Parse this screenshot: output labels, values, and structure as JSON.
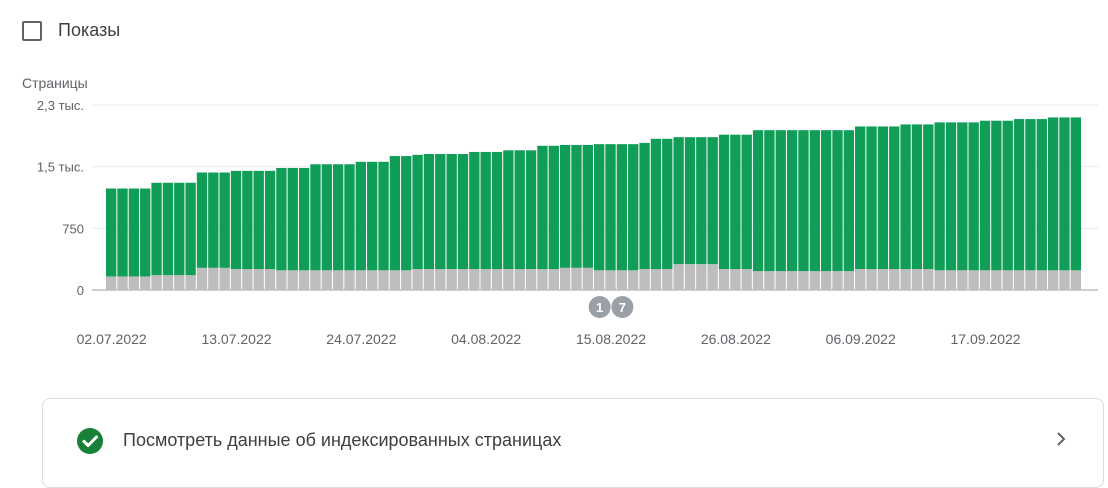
{
  "toggle": {
    "label": "Показы",
    "checked": false
  },
  "card": {
    "label": "Посмотреть данные об индексированных страницах"
  },
  "icons": {
    "check": "check-circle-icon",
    "chevron": "chevron-right-icon"
  },
  "colors": {
    "indexed": "#0f9d58",
    "not_indexed": "#bdbdbd",
    "annotation": "#9aa0a6"
  },
  "chart_data": {
    "type": "bar",
    "stacked": true,
    "ylabel": "Страницы",
    "ylim": [
      0,
      2300
    ],
    "yticks": [
      {
        "value": 0,
        "label": "0"
      },
      {
        "value": 750,
        "label": "750"
      },
      {
        "value": 1500,
        "label": "1,5 тыс."
      },
      {
        "value": 2250,
        "label": "2,3 тыс."
      }
    ],
    "grid": true,
    "x_tick_labels": [
      {
        "index": 0,
        "label": "02.07.2022"
      },
      {
        "index": 11,
        "label": "13.07.2022"
      },
      {
        "index": 22,
        "label": "24.07.2022"
      },
      {
        "index": 33,
        "label": "04.08.2022"
      },
      {
        "index": 44,
        "label": "15.08.2022"
      },
      {
        "index": 55,
        "label": "26.08.2022"
      },
      {
        "index": 66,
        "label": "06.09.2022"
      },
      {
        "index": 77,
        "label": "17.09.2022"
      }
    ],
    "annotations": [
      {
        "index": 43,
        "label": "1"
      },
      {
        "index": 45,
        "label": "7"
      }
    ],
    "series": [
      {
        "color": "#bdbdbd",
        "values": [
          165,
          165,
          165,
          165,
          180,
          180,
          180,
          180,
          270,
          270,
          270,
          255,
          255,
          255,
          255,
          240,
          240,
          240,
          240,
          240,
          240,
          240,
          240,
          240,
          240,
          240,
          240,
          255,
          255,
          255,
          255,
          255,
          255,
          255,
          255,
          255,
          255,
          255,
          255,
          255,
          270,
          270,
          270,
          240,
          240,
          240,
          240,
          255,
          255,
          255,
          315,
          315,
          315,
          315,
          255,
          255,
          255,
          230,
          230,
          230,
          230,
          230,
          230,
          230,
          230,
          230,
          255,
          255,
          255,
          255,
          255,
          255,
          255,
          240,
          240,
          240,
          240,
          240,
          240,
          240,
          240,
          240,
          240,
          240,
          240,
          240
        ]
      },
      {
        "color": "#0f9d58",
        "values": [
          1070,
          1070,
          1070,
          1070,
          1125,
          1125,
          1125,
          1125,
          1160,
          1160,
          1160,
          1195,
          1195,
          1195,
          1195,
          1245,
          1245,
          1245,
          1290,
          1290,
          1290,
          1290,
          1320,
          1320,
          1320,
          1390,
          1390,
          1390,
          1400,
          1400,
          1400,
          1400,
          1425,
          1425,
          1425,
          1445,
          1445,
          1445,
          1500,
          1500,
          1495,
          1495,
          1495,
          1535,
          1535,
          1535,
          1535,
          1535,
          1585,
          1585,
          1545,
          1545,
          1545,
          1545,
          1635,
          1635,
          1635,
          1715,
          1715,
          1715,
          1715,
          1715,
          1715,
          1715,
          1715,
          1715,
          1735,
          1735,
          1735,
          1735,
          1760,
          1760,
          1760,
          1800,
          1800,
          1800,
          1800,
          1820,
          1820,
          1820,
          1840,
          1840,
          1840,
          1860,
          1860,
          1860
        ]
      }
    ]
  }
}
